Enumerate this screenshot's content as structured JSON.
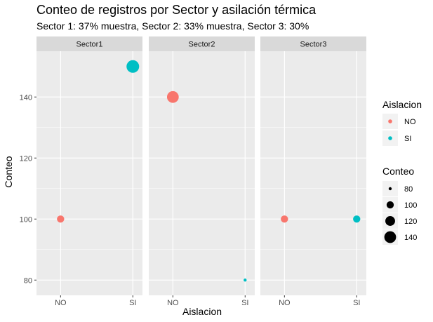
{
  "chart_data": {
    "type": "scatter",
    "title": "Conteo de registros por Sector y asilación térmica",
    "subtitle": "Sector 1: 37% muestra, Sector 2: 33% muestra, Sector 3: 30%",
    "xlabel": "Aislacion",
    "ylabel": "Conteo",
    "categories": [
      "NO",
      "SI"
    ],
    "ylim": [
      75,
      155
    ],
    "yticks": [
      80,
      100,
      120,
      140
    ],
    "facets": [
      {
        "label": "Sector1",
        "points": [
          {
            "x": "NO",
            "y": 100
          },
          {
            "x": "SI",
            "y": 150
          }
        ]
      },
      {
        "label": "Sector2",
        "points": [
          {
            "x": "NO",
            "y": 140
          },
          {
            "x": "SI",
            "y": 80
          }
        ]
      },
      {
        "label": "Sector3",
        "points": [
          {
            "x": "NO",
            "y": 100
          },
          {
            "x": "SI",
            "y": 100
          }
        ]
      }
    ],
    "color_legend": {
      "title": "Aislacion",
      "items": [
        {
          "label": "NO",
          "color": "#F8766D"
        },
        {
          "label": "SI",
          "color": "#00BFC4"
        }
      ]
    },
    "size_legend": {
      "title": "Conteo",
      "items": [
        {
          "label": "80",
          "value": 80
        },
        {
          "label": "100",
          "value": 100
        },
        {
          "label": "120",
          "value": 120
        },
        {
          "label": "140",
          "value": 140
        }
      ]
    },
    "grid": true,
    "legend_position": "right"
  }
}
